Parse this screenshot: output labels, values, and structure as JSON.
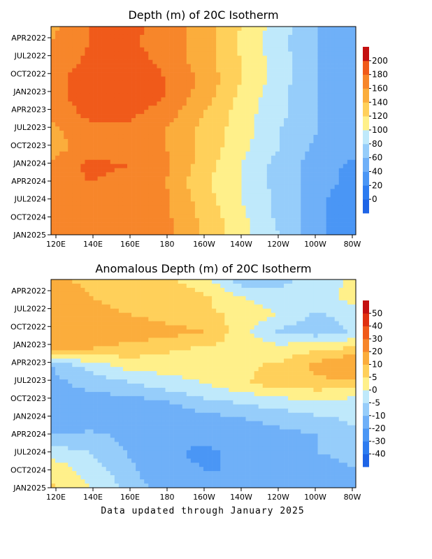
{
  "footer": "Data updated through January 2025",
  "chart_data": [
    {
      "type": "heatmap",
      "title": "Depth (m) of 20C Isotherm",
      "xlabel": "",
      "ylabel": "",
      "x_ticks": [
        "120E",
        "140E",
        "160E",
        "180",
        "160W",
        "140W",
        "120W",
        "100W",
        "80W"
      ],
      "y_ticks": [
        "APR2022",
        "JUL2022",
        "OCT2022",
        "JAN2023",
        "APR2023",
        "JUL2023",
        "OCT2023",
        "JAN2024",
        "APR2024",
        "JUL2024",
        "OCT2024",
        "JAN2025"
      ],
      "colorbar_levels": [
        0,
        20,
        40,
        60,
        80,
        100,
        120,
        140,
        160,
        180,
        200
      ],
      "colorbar_colors": [
        "#1e64e6",
        "#2d7cf0",
        "#4a96f5",
        "#6fb0f8",
        "#96cdfa",
        "#bfe9fb",
        "#fff08a",
        "#ffd05a",
        "#fbad3c",
        "#f7862a",
        "#f05a1a",
        "#c41010"
      ],
      "time_rows": [
        "2022-02",
        "2022-05",
        "2022-08",
        "2022-11",
        "2023-02",
        "2023-05",
        "2023-08",
        "2023-11",
        "2024-02",
        "2024-05",
        "2024-08",
        "2024-11",
        "2025-01"
      ],
      "longitudes": [
        "120E",
        "140E",
        "160E",
        "180",
        "160W",
        "140W",
        "120W",
        "100W",
        "80W"
      ],
      "values": [
        [
          155,
          180,
          185,
          175,
          150,
          120,
          90,
          60,
          45
        ],
        [
          160,
          180,
          185,
          170,
          150,
          115,
          85,
          60,
          40
        ],
        [
          165,
          185,
          190,
          175,
          150,
          120,
          90,
          60,
          40
        ],
        [
          170,
          195,
          200,
          180,
          155,
          120,
          90,
          60,
          40
        ],
        [
          170,
          195,
          200,
          180,
          150,
          115,
          85,
          60,
          45
        ],
        [
          165,
          185,
          185,
          170,
          140,
          110,
          85,
          60,
          50
        ],
        [
          155,
          175,
          175,
          160,
          135,
          110,
          80,
          60,
          50
        ],
        [
          150,
          170,
          170,
          160,
          135,
          105,
          80,
          55,
          45
        ],
        [
          165,
          185,
          180,
          165,
          130,
          100,
          70,
          50,
          35
        ],
        [
          170,
          180,
          175,
          160,
          125,
          100,
          70,
          50,
          30
        ],
        [
          175,
          180,
          175,
          165,
          130,
          100,
          75,
          45,
          25
        ],
        [
          175,
          180,
          175,
          165,
          135,
          105,
          75,
          45,
          25
        ],
        [
          175,
          180,
          175,
          165,
          135,
          105,
          80,
          45,
          25
        ]
      ]
    },
    {
      "type": "heatmap",
      "title": "Anomalous Depth (m) of 20C Isotherm",
      "xlabel": "",
      "ylabel": "",
      "x_ticks": [
        "120E",
        "140E",
        "160E",
        "180",
        "160W",
        "140W",
        "120W",
        "100W",
        "80W"
      ],
      "y_ticks": [
        "APR2022",
        "JUL2022",
        "OCT2022",
        "JAN2023",
        "APR2023",
        "JUL2023",
        "OCT2023",
        "JAN2024",
        "APR2024",
        "JUL2024",
        "OCT2024",
        "JAN2025"
      ],
      "colorbar_levels": [
        -40,
        -30,
        -20,
        -10,
        -5,
        0,
        5,
        10,
        20,
        30,
        40,
        50
      ],
      "colorbar_colors": [
        "#1e64e6",
        "#2d7cf0",
        "#4a96f5",
        "#6fb0f8",
        "#96cdfa",
        "#bfe9fb",
        "#fff08a",
        "#ffd05a",
        "#fbad3c",
        "#f7862a",
        "#f05a1a",
        "#e03010",
        "#c41010"
      ],
      "time_rows": [
        "2022-02",
        "2022-05",
        "2022-08",
        "2022-11",
        "2023-02",
        "2023-05",
        "2023-08",
        "2023-11",
        "2024-02",
        "2024-05",
        "2024-08",
        "2024-11",
        "2025-01"
      ],
      "longitudes": [
        "120E",
        "140E",
        "160E",
        "180",
        "160W",
        "140W",
        "120W",
        "100W",
        "80W"
      ],
      "values": [
        [
          12,
          8,
          6,
          6,
          2,
          -8,
          -6,
          -4,
          2
        ],
        [
          18,
          10,
          8,
          8,
          6,
          0,
          -4,
          -2,
          2
        ],
        [
          20,
          12,
          10,
          8,
          6,
          4,
          0,
          -6,
          -2
        ],
        [
          20,
          14,
          14,
          12,
          10,
          2,
          -6,
          -8,
          -4
        ],
        [
          14,
          10,
          8,
          6,
          4,
          4,
          2,
          4,
          6
        ],
        [
          -10,
          -4,
          2,
          2,
          2,
          4,
          6,
          12,
          18
        ],
        [
          -12,
          -8,
          -6,
          -2,
          0,
          4,
          8,
          8,
          8
        ],
        [
          -15,
          -12,
          -12,
          -10,
          -6,
          -4,
          -2,
          0,
          -2
        ],
        [
          -20,
          -15,
          -15,
          -15,
          -12,
          -10,
          -8,
          -6,
          -4
        ],
        [
          -10,
          -8,
          -12,
          -18,
          -18,
          -14,
          -12,
          -10,
          -6
        ],
        [
          -2,
          -5,
          -10,
          -18,
          -22,
          -18,
          -12,
          -10,
          -8
        ],
        [
          4,
          -2,
          -8,
          -16,
          -20,
          -20,
          -18,
          -14,
          -10
        ],
        [
          6,
          0,
          -6,
          -12,
          -16,
          -20,
          -20,
          -16,
          -12
        ]
      ]
    }
  ]
}
